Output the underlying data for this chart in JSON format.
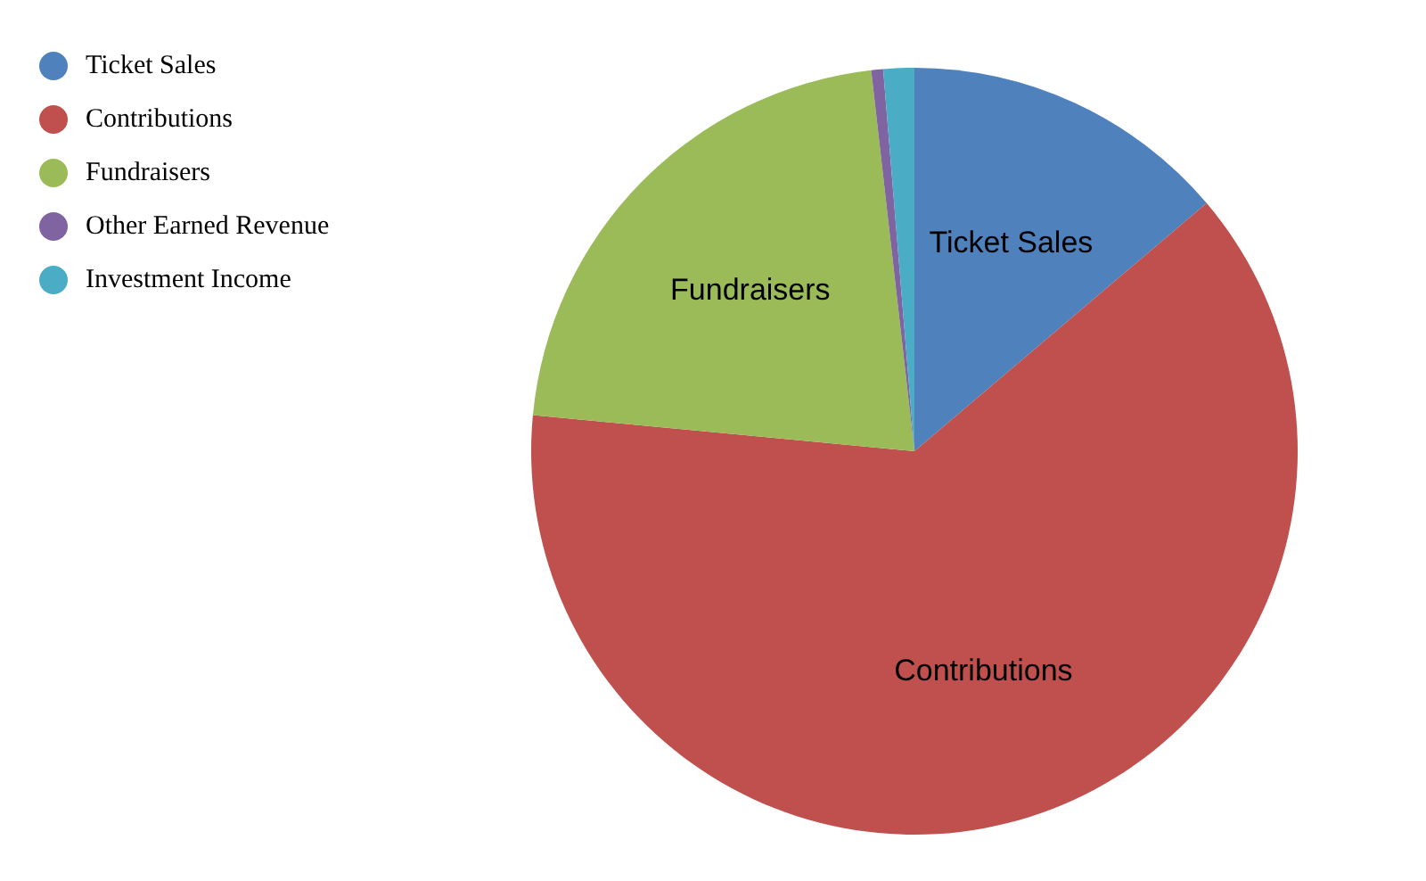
{
  "chart_data": {
    "type": "pie",
    "categories": [
      "Ticket Sales",
      "Contributions",
      "Fundraisers",
      "Other Earned Revenue",
      "Investment Income"
    ],
    "values": [
      13.8,
      62.7,
      21.7,
      0.5,
      1.3
    ],
    "colors": [
      "#4f81bd",
      "#c0504d",
      "#9bbb59",
      "#8064a2",
      "#4bacc6"
    ],
    "value_labels": [
      "Ticket Sales",
      "Contributions",
      "Fundraisers",
      null,
      null
    ],
    "legend": "top left"
  }
}
